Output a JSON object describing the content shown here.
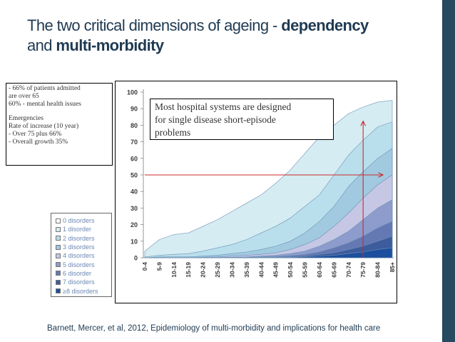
{
  "slide": {
    "title_plain_1": "The two critical dimensions of ageing - ",
    "title_bold_1": "dependency",
    "title_plain_2": "and ",
    "title_bold_2": "multi-morbidity",
    "citation": "Barnett, Mercer, et al, 2012, Epidemiology of multi-morbidity and implications for health care",
    "band_color": "#264a60"
  },
  "note_box": {
    "lines": [
      "- 66% of patients  admitted",
      "are over 65",
      "60% - mental health issues",
      "",
      "Emergencies",
      "Rate of increase (10 year)",
      "- Over 75 plus 66%",
      "-  Overall growth 35%"
    ]
  },
  "callout": {
    "line1": "Most hospital systems are designed",
    "line2": "for single disease short-episode",
    "line3": "problems"
  },
  "legend": {
    "items": [
      {
        "label": "0 disorders",
        "color": "#ffffff"
      },
      {
        "label": "1 disorder",
        "color": "#d5ecf3"
      },
      {
        "label": "2 disorders",
        "color": "#b9dfec"
      },
      {
        "label": "3 disorders",
        "color": "#a1c9e0"
      },
      {
        "label": "4 disorders",
        "color": "#c5c7e5"
      },
      {
        "label": "5 disorders",
        "color": "#8d9ccc"
      },
      {
        "label": "6 disorder",
        "color": "#6478b4"
      },
      {
        "label": "7 disorders",
        "color": "#3d5c9c"
      },
      {
        "label": "≥8 disorders",
        "color": "#1c4f9d"
      }
    ]
  },
  "chart_data": {
    "type": "area",
    "title": "",
    "xlabel": "",
    "ylabel": "",
    "ylim": [
      0,
      100
    ],
    "yticks": [
      0,
      10,
      20,
      30,
      40,
      50,
      60,
      70,
      80,
      90,
      100
    ],
    "categories": [
      "0-4",
      "5-9",
      "10-14",
      "15-19",
      "20-24",
      "25-29",
      "30-34",
      "35-39",
      "40-44",
      "45-49",
      "50-54",
      "55-59",
      "60-64",
      "65-69",
      "70-74",
      "75-79",
      "80-84",
      "85+"
    ],
    "series": [
      {
        "name": "1 disorder",
        "color": "#d5ecf3",
        "values": [
          4,
          11,
          14,
          15,
          19,
          23,
          28,
          33,
          38,
          45,
          53,
          63,
          73,
          80,
          87,
          91,
          94,
          95
        ]
      },
      {
        "name": "2 disorders",
        "color": "#b9dfec",
        "values": [
          0.5,
          1.5,
          2,
          2.5,
          4,
          6,
          8,
          11,
          15,
          19,
          24,
          31,
          38,
          50,
          62,
          71,
          79,
          82
        ]
      },
      {
        "name": "3 disorders",
        "color": "#a1c9e0",
        "values": [
          0,
          0.5,
          0.5,
          0.5,
          1,
          1.5,
          2.5,
          3.5,
          5,
          7,
          10,
          15,
          22,
          31,
          43,
          52,
          60,
          66
        ]
      },
      {
        "name": "4 disorders",
        "color": "#c5c7e5",
        "values": [
          0,
          0,
          0,
          0,
          0.3,
          0.5,
          1,
          1.5,
          2,
          3,
          5,
          8,
          12,
          19,
          27,
          36,
          44,
          50
        ]
      },
      {
        "name": "5 disorders",
        "color": "#8d9ccc",
        "values": [
          0,
          0,
          0,
          0,
          0,
          0.2,
          0.3,
          0.5,
          1,
          1.5,
          2.5,
          4,
          7,
          11,
          16,
          23,
          30,
          35
        ]
      },
      {
        "name": "6 disorder",
        "color": "#6478b4",
        "values": [
          0,
          0,
          0,
          0,
          0,
          0,
          0.1,
          0.2,
          0.4,
          0.7,
          1.2,
          2,
          3.5,
          6,
          9,
          13,
          18,
          22
        ]
      },
      {
        "name": "7 disorders",
        "color": "#3d5c9c",
        "values": [
          0,
          0,
          0,
          0,
          0,
          0,
          0,
          0.1,
          0.2,
          0.3,
          0.6,
          1,
          2,
          3,
          5,
          7,
          10,
          13
        ]
      },
      {
        "name": "≥8 disorders",
        "color": "#1c4f9d",
        "values": [
          0,
          0,
          0,
          0,
          0,
          0,
          0,
          0,
          0.1,
          0.2,
          0.3,
          0.5,
          1,
          1.5,
          2.5,
          3.5,
          5,
          6
        ]
      }
    ],
    "annotations": [
      {
        "type": "horizontal-arrow",
        "y": 50,
        "from_category": "0-4",
        "to_category": "85+",
        "color": "#cc2a2a"
      },
      {
        "type": "vertical-arrow",
        "category": "75-79",
        "from_y": 0,
        "to_y": 82,
        "color": "#cc2a2a"
      }
    ]
  }
}
